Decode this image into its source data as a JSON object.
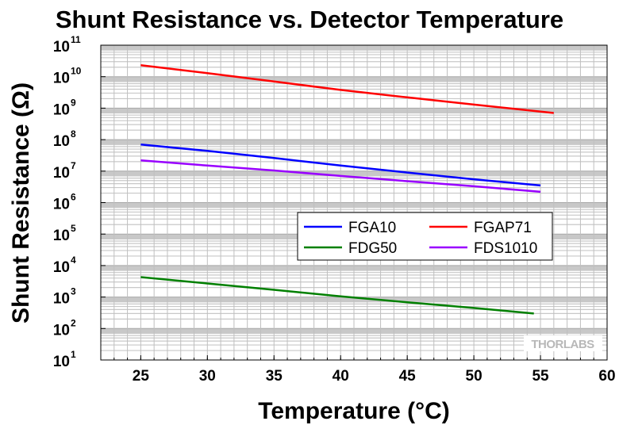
{
  "chart_data": {
    "type": "line",
    "title": "Shunt Resistance vs. Detector Temperature",
    "xlabel": "Temperature (°C)",
    "ylabel": "Shunt Resistance (Ω)",
    "xlim": [
      22,
      60
    ],
    "ylim": [
      10,
      100000000000
    ],
    "y_scale": "log",
    "x_ticks": [
      25,
      30,
      35,
      40,
      45,
      50,
      55,
      60
    ],
    "y_ticks": [
      {
        "base": "10",
        "exp": "1"
      },
      {
        "base": "10",
        "exp": "2"
      },
      {
        "base": "10",
        "exp": "3"
      },
      {
        "base": "10",
        "exp": "4"
      },
      {
        "base": "10",
        "exp": "5"
      },
      {
        "base": "10",
        "exp": "6"
      },
      {
        "base": "10",
        "exp": "7"
      },
      {
        "base": "10",
        "exp": "8"
      },
      {
        "base": "10",
        "exp": "9"
      },
      {
        "base": "10",
        "exp": "10"
      },
      {
        "base": "10",
        "exp": "11"
      }
    ],
    "grid": true,
    "legend_position": "center-right",
    "series": [
      {
        "name": "FGA10",
        "color": "#0000ff",
        "x": [
          25,
          30,
          35,
          40,
          45,
          50,
          55
        ],
        "y": [
          70000000,
          44000000,
          26000000,
          15000000,
          9000000,
          5500000,
          3500000
        ]
      },
      {
        "name": "FGAP71",
        "color": "#ff0000",
        "x": [
          25,
          30,
          35,
          40,
          45,
          50,
          56
        ],
        "y": [
          23000000000,
          13000000000,
          7000000000,
          3800000000,
          2200000000,
          1300000000,
          700000000
        ]
      },
      {
        "name": "FDG50",
        "color": "#008000",
        "x": [
          25,
          30,
          35,
          40,
          45,
          50,
          54.5
        ],
        "y": [
          4300,
          2700,
          1700,
          1050,
          680,
          450,
          300
        ]
      },
      {
        "name": "FDS1010",
        "color": "#9900ff",
        "x": [
          25,
          30,
          35,
          40,
          45,
          50,
          55
        ],
        "y": [
          22000000,
          15000000,
          10500000,
          7000000,
          4800000,
          3300000,
          2200000
        ]
      }
    ],
    "watermark": "THORLABS"
  }
}
